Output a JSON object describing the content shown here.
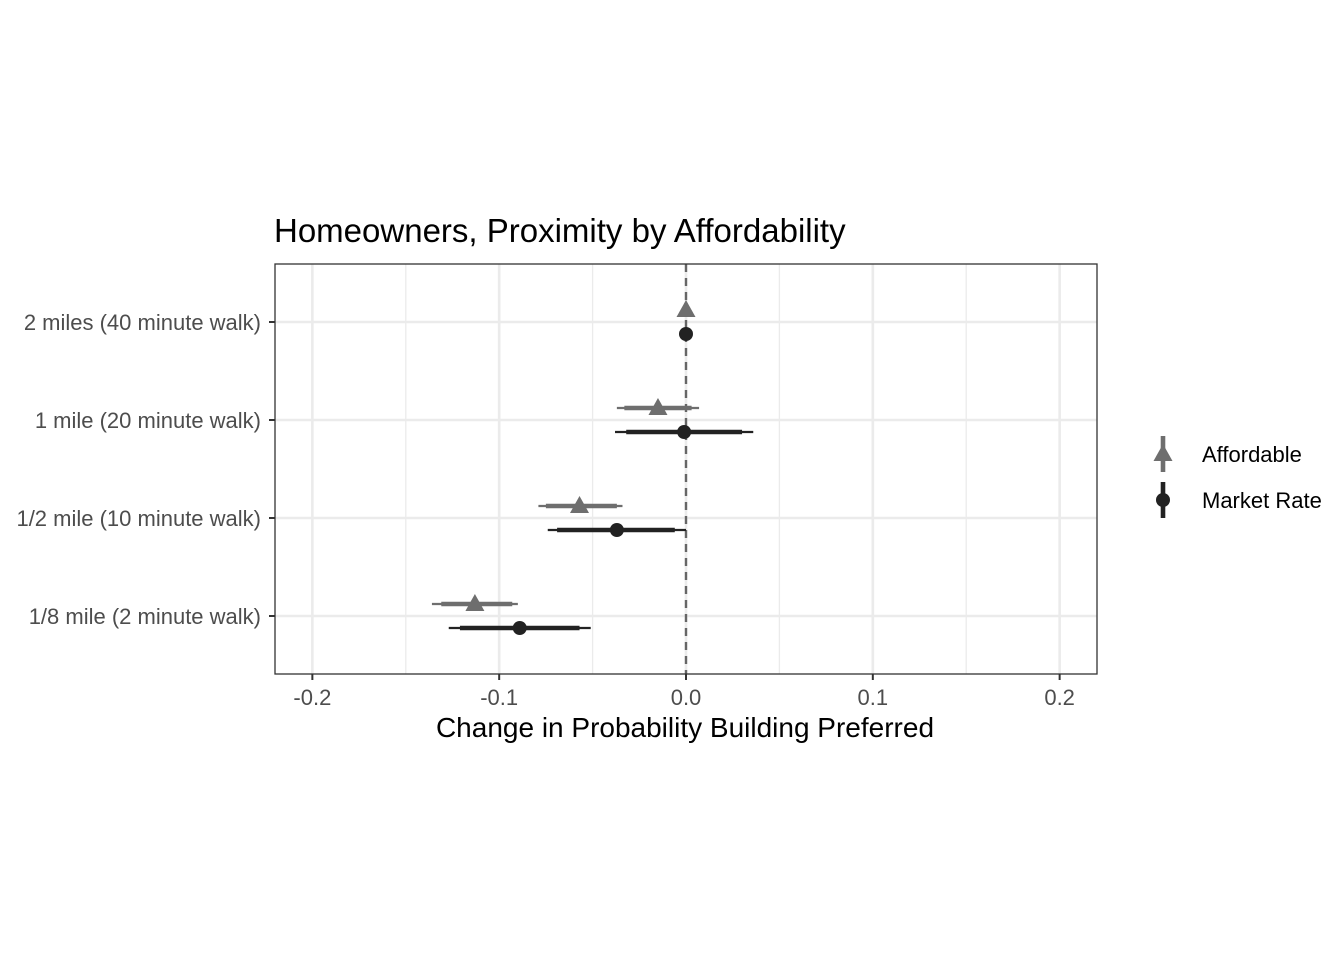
{
  "chart_data": {
    "type": "scatter",
    "title": "Homeowners, Proximity by Affordability",
    "xlabel": "Change in Probability Building Preferred",
    "ylabel": "",
    "xlim": [
      -0.22,
      0.22
    ],
    "x_ticks": [
      -0.2,
      -0.1,
      0.0,
      0.1,
      0.2
    ],
    "x_tick_labels": [
      "-0.2",
      "-0.1",
      "0.0",
      "0.1",
      "0.2"
    ],
    "categories": [
      "2 miles (40 minute walk)",
      "1 mile (20 minute walk)",
      "1/2 mile (10 minute walk)",
      "1/8 mile (2 minute walk)"
    ],
    "reference_line": 0.0,
    "grid": true,
    "legend_position": "right",
    "series": [
      {
        "name": "Affordable",
        "marker": "triangle",
        "color": "#6e6e6e",
        "estimates": [
          0.0,
          -0.015,
          -0.057,
          -0.113
        ],
        "ci_inner": [
          [
            0.0,
            0.0
          ],
          [
            -0.033,
            0.003
          ],
          [
            -0.075,
            -0.037
          ],
          [
            -0.131,
            -0.093
          ]
        ],
        "ci_outer": [
          [
            0.0,
            0.0
          ],
          [
            -0.037,
            0.007
          ],
          [
            -0.079,
            -0.034
          ],
          [
            -0.136,
            -0.09
          ]
        ]
      },
      {
        "name": "Market Rate",
        "marker": "circle",
        "color": "#222222",
        "estimates": [
          0.0,
          -0.001,
          -0.037,
          -0.089
        ],
        "ci_inner": [
          [
            0.0,
            0.0
          ],
          [
            -0.032,
            0.03
          ],
          [
            -0.069,
            -0.006
          ],
          [
            -0.121,
            -0.057
          ]
        ],
        "ci_outer": [
          [
            0.0,
            0.0
          ],
          [
            -0.038,
            0.036
          ],
          [
            -0.074,
            0.0
          ],
          [
            -0.127,
            -0.051
          ]
        ]
      }
    ]
  }
}
